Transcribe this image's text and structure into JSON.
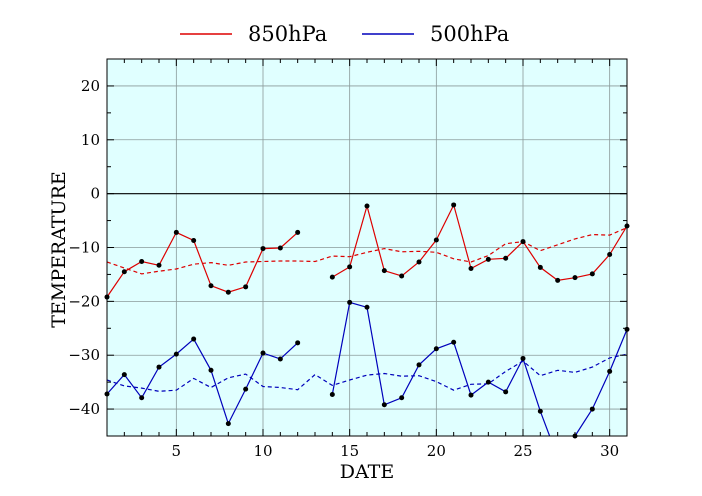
{
  "chart_data": {
    "type": "line",
    "xlabel": "DATE",
    "ylabel": "TEMPERATURE",
    "xlim": [
      1,
      31
    ],
    "ylim": [
      -45,
      25
    ],
    "x_ticks": [
      "5",
      "10",
      "15",
      "20",
      "25",
      "30"
    ],
    "y_ticks": [
      "20",
      "10",
      "0",
      "−10",
      "−20",
      "−30",
      "−40"
    ],
    "grid": true,
    "legend_position": "top",
    "background_color": "#e0ffff",
    "x": [
      1,
      2,
      3,
      4,
      5,
      6,
      7,
      8,
      9,
      10,
      11,
      12,
      13,
      14,
      15,
      16,
      17,
      18,
      19,
      20,
      21,
      22,
      23,
      24,
      25,
      26,
      27,
      28,
      29,
      30,
      31
    ],
    "series": [
      {
        "name": "850hPa",
        "color": "#dd0000",
        "style": "solid",
        "markers": true,
        "values": [
          -19.2,
          -14.5,
          -12.6,
          -13.3,
          -7.2,
          -8.7,
          -17.1,
          -18.3,
          -17.3,
          -10.2,
          -10.1,
          -7.2,
          null,
          -15.5,
          -13.6,
          -2.3,
          -14.3,
          -15.3,
          -12.7,
          -8.6,
          -2.1,
          -13.9,
          -12.2,
          -12.0,
          -8.9,
          -13.7,
          -16.1,
          -15.6,
          -14.9,
          -11.3,
          -6.0
        ]
      },
      {
        "name": "500hPa",
        "color": "#0000bb",
        "style": "solid",
        "markers": true,
        "values": [
          -37.2,
          -33.6,
          -37.9,
          -32.2,
          -29.8,
          -27.0,
          -32.8,
          -42.7,
          -36.3,
          -29.6,
          -30.7,
          -27.7,
          null,
          -37.3,
          -20.2,
          -21.1,
          -39.2,
          -37.9,
          -31.8,
          -28.8,
          -27.6,
          -37.4,
          -35.0,
          -36.8,
          -30.6,
          -40.4,
          -49.0,
          -45.0,
          -40.0,
          -33.0,
          -25.2
        ]
      },
      {
        "name": "",
        "color": "#dd0000",
        "style": "dashed",
        "markers": false,
        "values": [
          -12.7,
          -13.8,
          -14.9,
          -14.4,
          -14.0,
          -13.1,
          -12.8,
          -13.3,
          -12.7,
          -12.6,
          -12.5,
          -12.5,
          -12.6,
          -11.6,
          -11.7,
          -10.9,
          -10.2,
          -10.8,
          -10.7,
          -10.9,
          -12.1,
          -12.7,
          -11.5,
          -9.3,
          -8.9,
          -10.6,
          -9.5,
          -8.4,
          -7.6,
          -7.7,
          -6.3
        ]
      },
      {
        "name": "",
        "color": "#0000bb",
        "style": "dashed",
        "markers": false,
        "values": [
          -34.6,
          -35.7,
          -36.1,
          -36.7,
          -36.5,
          -34.3,
          -36.0,
          -34.2,
          -33.5,
          -35.8,
          -36.0,
          -36.4,
          -33.6,
          -35.6,
          -34.6,
          -33.7,
          -33.4,
          -33.9,
          -33.8,
          -34.9,
          -36.5,
          -35.4,
          -35.3,
          -33.0,
          -31.1,
          -33.8,
          -32.8,
          -33.2,
          -32.2,
          -30.5,
          -29.8
        ]
      }
    ]
  }
}
